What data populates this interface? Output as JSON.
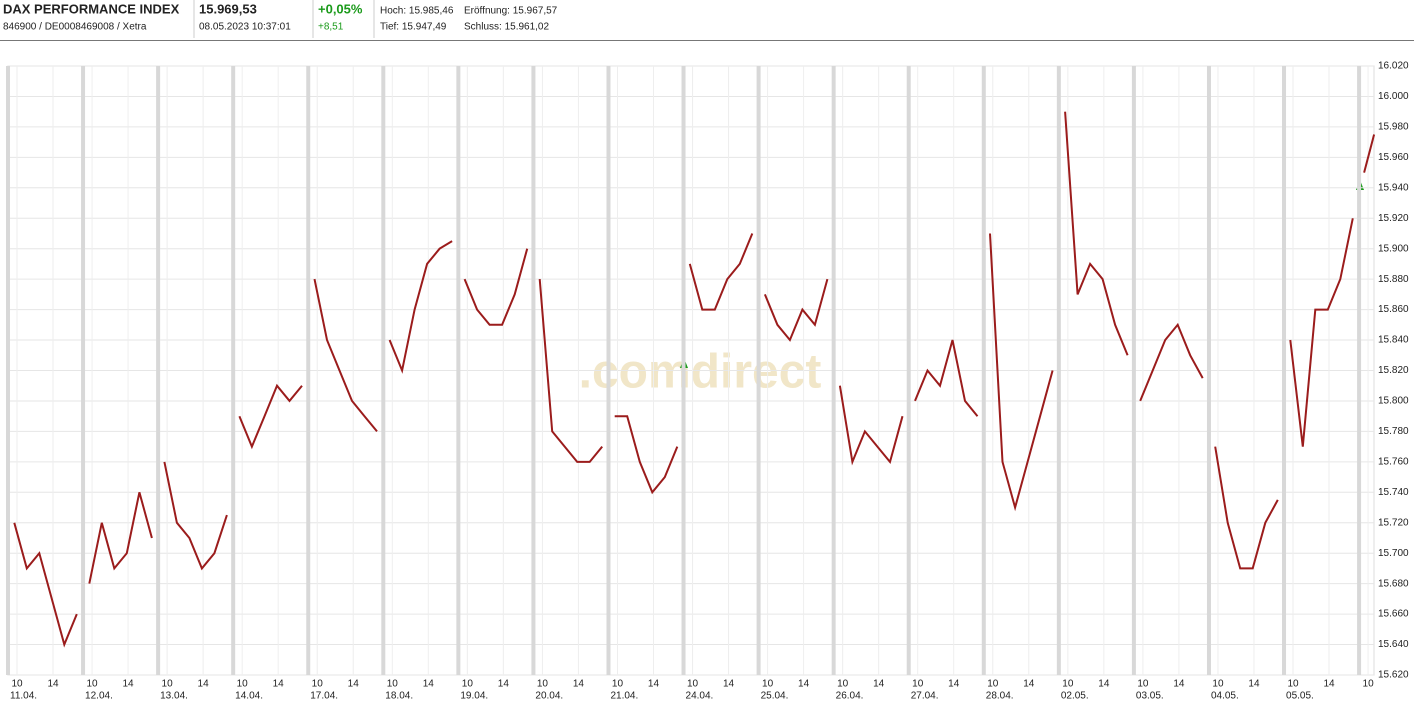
{
  "header": {
    "name": "DAX PERFORMANCE INDEX",
    "ids": "846900 / DE0008469008 / Xetra",
    "price": "15.969,53",
    "time": "08.05.2023 10:37:01",
    "change_pct": "+0,05%",
    "change_abs": "+8,51",
    "high": "Hoch: 15.985,46",
    "low": "Tief: 15.947,49",
    "open": "Eröffnung: 15.967,57",
    "close": "Schluss: 15.961,02"
  },
  "chart_data": {
    "type": "line",
    "watermark": ".comdirect",
    "color": "#9b1c1c",
    "grid": true,
    "categories": [
      "11.04.",
      "12.04.",
      "13.04.",
      "14.04.",
      "17.04.",
      "18.04.",
      "19.04.",
      "20.04.",
      "21.04.",
      "24.04.",
      "25.04.",
      "26.04.",
      "27.04.",
      "28.04.",
      "02.05.",
      "03.05.",
      "04.05.",
      "05.05.",
      null
    ],
    "hours": [
      [
        10,
        14
      ],
      [
        10,
        14
      ],
      [
        10,
        14
      ],
      [
        10,
        14
      ],
      [
        10,
        14
      ],
      [
        10,
        14
      ],
      [
        10,
        14
      ],
      [
        10,
        14
      ],
      [
        10,
        14
      ],
      [
        10,
        14
      ],
      [
        10,
        14
      ],
      [
        10,
        14
      ],
      [
        10,
        14
      ],
      [
        10,
        14
      ],
      [
        10,
        14
      ],
      [
        10,
        14
      ],
      [
        10,
        14
      ],
      [
        10,
        14
      ],
      [
        10
      ]
    ],
    "values": [
      [
        15720,
        15690,
        15700,
        15670,
        15640,
        15660
      ],
      [
        15680,
        15720,
        15690,
        15700,
        15740,
        15710
      ],
      [
        15760,
        15720,
        15710,
        15690,
        15700,
        15725
      ],
      [
        15790,
        15770,
        15790,
        15810,
        15800,
        15810
      ],
      [
        15880,
        15840,
        15820,
        15800,
        15790,
        15780
      ],
      [
        15840,
        15820,
        15860,
        15890,
        15900,
        15905
      ],
      [
        15880,
        15860,
        15850,
        15850,
        15870,
        15900
      ],
      [
        15880,
        15780,
        15770,
        15760,
        15760,
        15770
      ],
      [
        15790,
        15790,
        15760,
        15740,
        15750,
        15770
      ],
      [
        15890,
        15860,
        15860,
        15880,
        15890,
        15910
      ],
      [
        15870,
        15850,
        15840,
        15860,
        15850,
        15880
      ],
      [
        15810,
        15760,
        15780,
        15770,
        15760,
        15790
      ],
      [
        15800,
        15820,
        15810,
        15840,
        15800,
        15790
      ],
      [
        15910,
        15760,
        15730,
        15760,
        15790,
        15820
      ],
      [
        15990,
        15870,
        15890,
        15880,
        15850,
        15830
      ],
      [
        15800,
        15820,
        15840,
        15850,
        15830,
        15815
      ],
      [
        15770,
        15720,
        15690,
        15690,
        15720,
        15735
      ],
      [
        15840,
        15770,
        15860,
        15860,
        15880,
        15920
      ],
      [
        15950,
        15975
      ]
    ],
    "ylim": [
      15620,
      16020
    ],
    "yticks": [
      {
        "value": 15620,
        "label": "15.620"
      },
      {
        "value": 15640,
        "label": "15.640"
      },
      {
        "value": 15660,
        "label": "15.660"
      },
      {
        "value": 15680,
        "label": "15.680"
      },
      {
        "value": 15700,
        "label": "15.700"
      },
      {
        "value": 15720,
        "label": "15.720"
      },
      {
        "value": 15740,
        "label": "15.740"
      },
      {
        "value": 15760,
        "label": "15.760"
      },
      {
        "value": 15780,
        "label": "15.780"
      },
      {
        "value": 15800,
        "label": "15.800"
      },
      {
        "value": 15820,
        "label": "15.820"
      },
      {
        "value": 15840,
        "label": "15.840"
      },
      {
        "value": 15860,
        "label": "15.860"
      },
      {
        "value": 15880,
        "label": "15.880"
      },
      {
        "value": 15900,
        "label": "15.900"
      },
      {
        "value": 15920,
        "label": "15.920"
      },
      {
        "value": 15940,
        "label": "15.940"
      },
      {
        "value": 15960,
        "label": "15.960"
      },
      {
        "value": 15980,
        "label": "15.980"
      },
      {
        "value": 16000,
        "label": "16.000"
      },
      {
        "value": 16020,
        "label": "16.020"
      }
    ]
  }
}
